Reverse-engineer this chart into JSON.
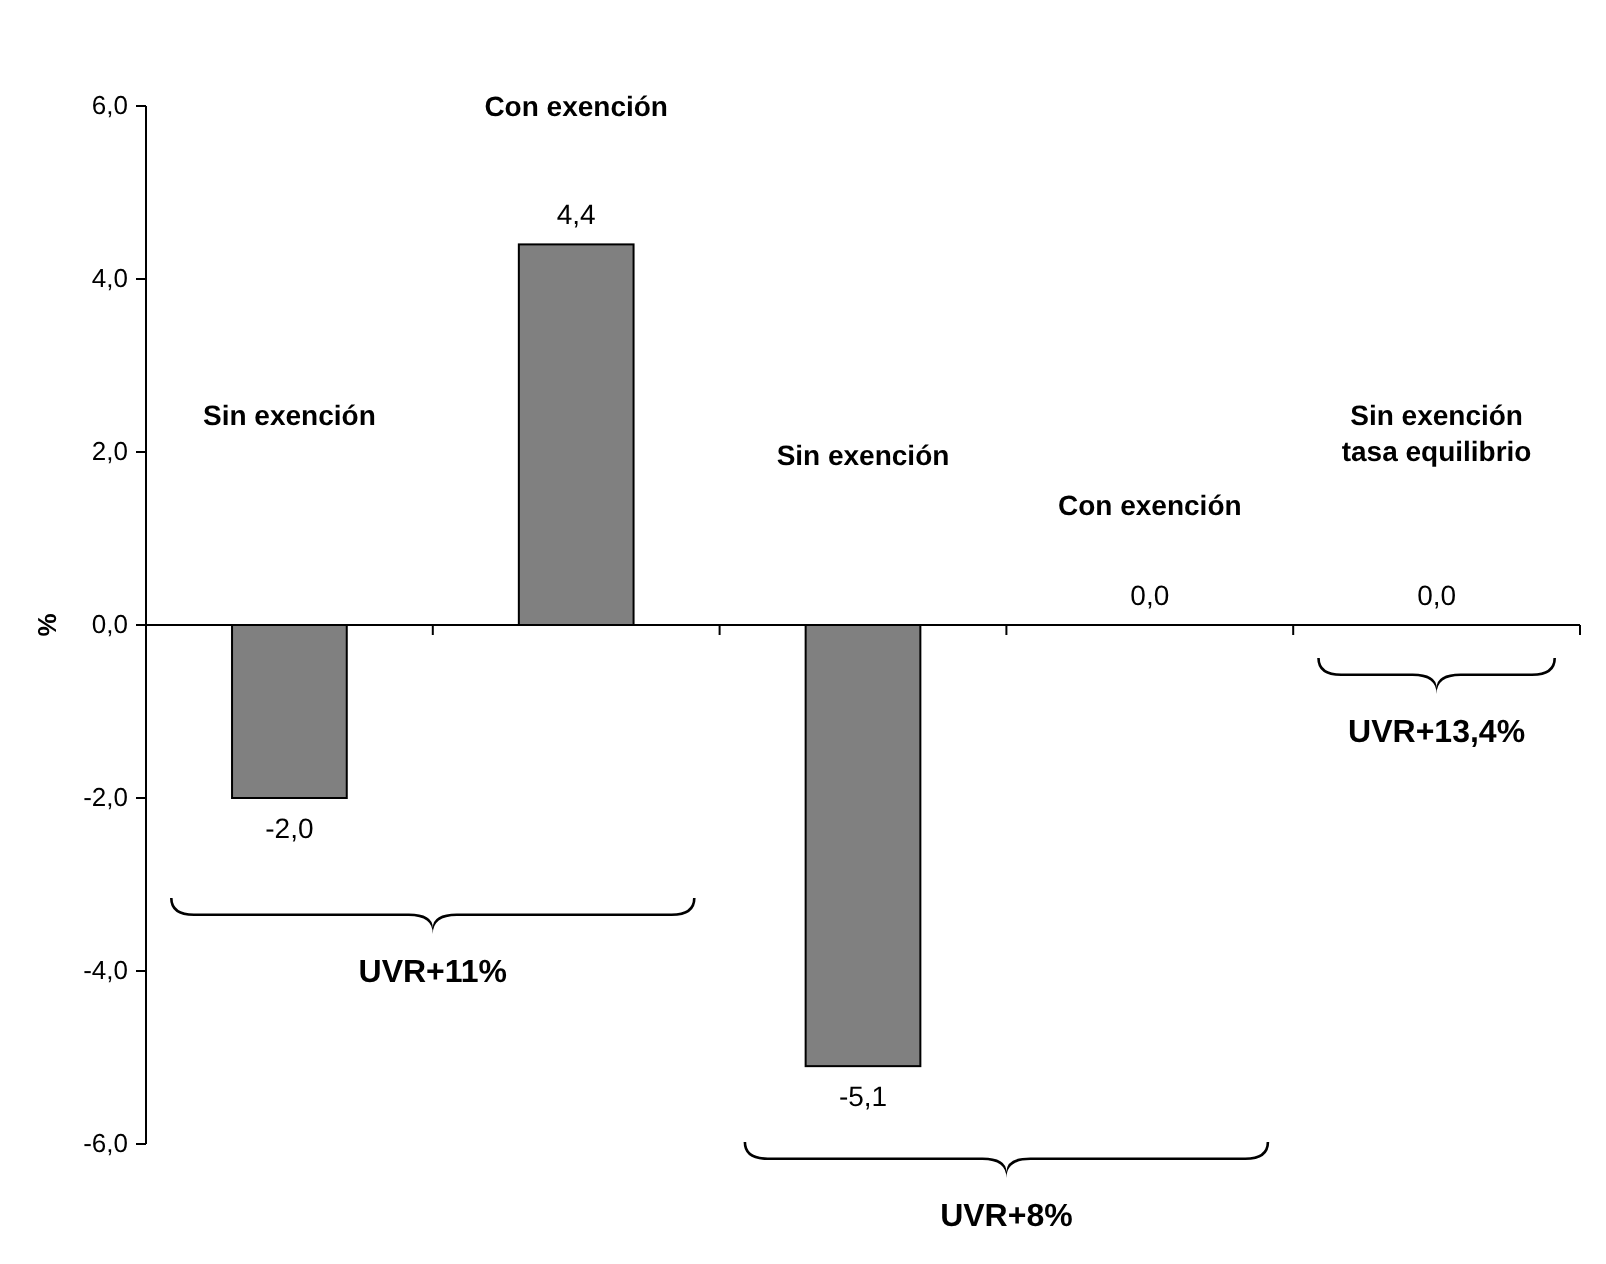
{
  "chart_data": {
    "type": "bar",
    "ylabel": "%",
    "categories": [
      null,
      null,
      null,
      null,
      null
    ],
    "values": [
      -2.0,
      4.4,
      -5.1,
      0.0,
      0.0
    ],
    "value_labels": [
      "-2,0",
      "4,4",
      "-5,1",
      "0,0",
      "0,0"
    ],
    "color": "#808080",
    "ylim": [
      -6,
      6
    ],
    "yticks": [
      {
        "value": -6,
        "label": "-6,0"
      },
      {
        "value": -4,
        "label": "-4,0"
      },
      {
        "value": -2,
        "label": "-2,0"
      },
      {
        "value": 0,
        "label": "0,0"
      },
      {
        "value": 2,
        "label": "2,0"
      },
      {
        "value": 4,
        "label": "4,0"
      },
      {
        "value": 6,
        "label": "6,0"
      }
    ],
    "annotations": [
      "Sin exención",
      "Con exención",
      "Sin exención",
      "Con exención",
      "Sin exención\ntasa equilibrio",
      "UVR+11%",
      "UVR+8%",
      "UVR+13,4%"
    ],
    "ref_lines": [
      {
        "axis": "y",
        "value": 0
      }
    ],
    "grid": false
  }
}
